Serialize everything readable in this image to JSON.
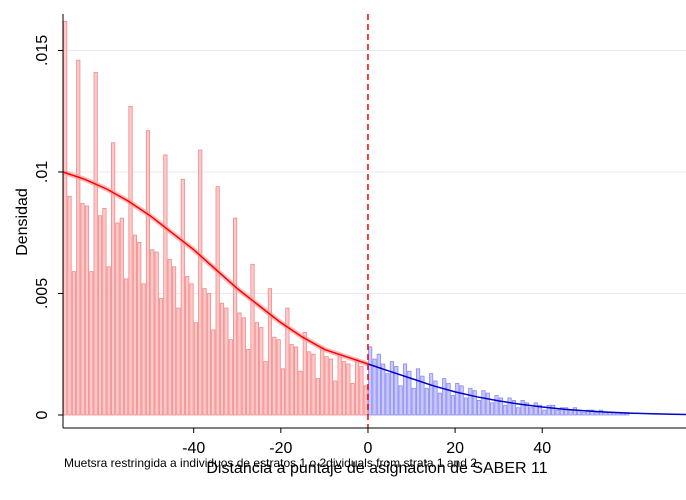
{
  "chart_data": {
    "type": "bar",
    "ylabel": "Densidad",
    "xlabel": "Distancia a puntaje de asignacion de SABER 11",
    "note": "Muetsra restringida a individuos de estratos 1 o 2dividuals from strata 1 and 2.",
    "xlim": [
      -70,
      73
    ],
    "ylim": [
      0,
      0.0165
    ],
    "xticks": [
      -40,
      -20,
      0,
      20,
      40
    ],
    "yticks": [
      0,
      0.005,
      0.01,
      0.015
    ],
    "ytick_labels": [
      "0",
      ".005",
      ".01",
      ".015"
    ],
    "cutoff": 0,
    "grid": true,
    "colors": {
      "left_fill": "#ffc9c9",
      "left_stroke": "#f08a8a",
      "right_fill": "#c9c9ff",
      "right_stroke": "#8a8af0",
      "left_line": "#ff0000",
      "right_line": "#0000cc",
      "cutoff_line": "#ff0000"
    },
    "bin_width": 1,
    "left_bins": {
      "x_start": -70,
      "values": [
        0.0162,
        0.009,
        0.0059,
        0.0146,
        0.0087,
        0.0086,
        0.0059,
        0.0141,
        0.0082,
        0.0085,
        0.0061,
        0.0112,
        0.0079,
        0.0081,
        0.0056,
        0.0127,
        0.0074,
        0.0071,
        0.0054,
        0.0117,
        0.0068,
        0.0067,
        0.0048,
        0.0107,
        0.0064,
        0.0061,
        0.0044,
        0.0097,
        0.0057,
        0.0054,
        0.0038,
        0.0109,
        0.0052,
        0.005,
        0.0035,
        0.0094,
        0.0046,
        0.0044,
        0.0031,
        0.0081,
        0.0042,
        0.004,
        0.0027,
        0.0062,
        0.0038,
        0.0036,
        0.0022,
        0.0052,
        0.0032,
        0.0031,
        0.0019,
        0.0044,
        0.0029,
        0.0028,
        0.0018,
        0.0034,
        0.0026,
        0.0025,
        0.0015,
        0.0028,
        0.0024,
        0.0023,
        0.0014,
        0.0025,
        0.0022,
        0.0021,
        0.0013,
        0.0023,
        0.002,
        0.0012
      ]
    },
    "right_bins": {
      "x_start": 0,
      "values": [
        0.0028,
        0.0023,
        0.0025,
        0.0021,
        0.0017,
        0.0022,
        0.002,
        0.0012,
        0.0021,
        0.0018,
        0.0011,
        0.0019,
        0.0016,
        0.0011,
        0.0017,
        0.0014,
        0.0009,
        0.0015,
        0.0013,
        0.0008,
        0.0013,
        0.0012,
        0.0007,
        0.0011,
        0.001,
        0.0006,
        0.001,
        0.0009,
        0.0005,
        0.0008,
        0.0007,
        0.0004,
        0.0007,
        0.0006,
        0.0003,
        0.0006,
        0.0005,
        0.0003,
        0.0005,
        0.0004,
        0.0002,
        0.0004,
        0.0004,
        0.0002,
        0.0003,
        0.0003,
        0.0002,
        0.0003,
        0.0002,
        0.0001,
        0.0002,
        0.0002,
        0.0001,
        0.0002,
        0.0001,
        0.0001,
        0.0001,
        0.0001,
        0.0001,
        0.0001
      ]
    },
    "series": [
      {
        "side": "left",
        "x": [
          -70,
          -65,
          -60,
          -55,
          -50,
          -45,
          -40,
          -35,
          -30,
          -25,
          -20,
          -15,
          -10,
          -5,
          0
        ],
        "y": [
          0.01,
          0.0097,
          0.0093,
          0.0088,
          0.0082,
          0.0075,
          0.0068,
          0.006,
          0.0052,
          0.0045,
          0.0038,
          0.0032,
          0.0027,
          0.0024,
          0.0021
        ]
      },
      {
        "side": "right",
        "x": [
          0,
          5,
          10,
          15,
          20,
          25,
          30,
          35,
          40,
          45,
          50,
          55,
          60,
          65,
          70,
          73
        ],
        "y": [
          0.0021,
          0.0018,
          0.0015,
          0.0012,
          0.00095,
          0.00075,
          0.00058,
          0.00044,
          0.00033,
          0.00024,
          0.00017,
          0.00012,
          8e-05,
          5e-05,
          3e-05,
          2e-05
        ]
      }
    ]
  }
}
